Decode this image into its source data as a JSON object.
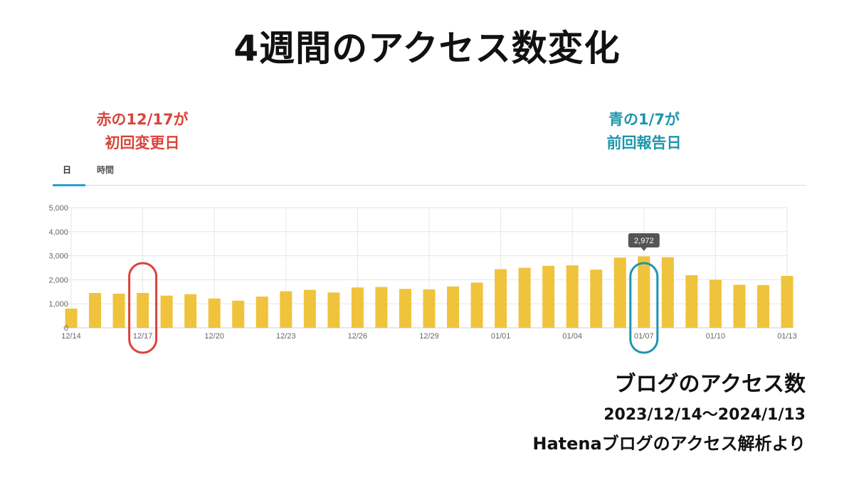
{
  "title": "4週間のアクセス数変化",
  "annotations": {
    "red": {
      "line1": "赤の12/17が",
      "line2": "初回変更日",
      "color": "#d9443a"
    },
    "teal": {
      "line1": "青の1/7が",
      "line2": "前回報告日",
      "color": "#1d96ad"
    }
  },
  "tabs": {
    "day": "日",
    "hour": "時間"
  },
  "footer": {
    "line1": "ブログのアクセス数",
    "line2": "2023/12/14〜2024/1/13",
    "line3": "Hatenaブログのアクセス解析より"
  },
  "chart_data": {
    "type": "bar",
    "categories": [
      "12/14",
      "12/15",
      "12/16",
      "12/17",
      "12/18",
      "12/19",
      "12/20",
      "12/21",
      "12/22",
      "12/23",
      "12/24",
      "12/25",
      "12/26",
      "12/27",
      "12/28",
      "12/29",
      "12/30",
      "12/31",
      "01/01",
      "01/02",
      "01/03",
      "01/04",
      "01/05",
      "01/06",
      "01/07",
      "01/08",
      "01/09",
      "01/10",
      "01/11",
      "01/12",
      "01/13"
    ],
    "values": [
      800,
      1450,
      1420,
      1450,
      1340,
      1400,
      1220,
      1130,
      1300,
      1520,
      1580,
      1470,
      1680,
      1700,
      1620,
      1600,
      1720,
      1880,
      2440,
      2500,
      2580,
      2600,
      2420,
      2920,
      2972,
      2940,
      2190,
      2000,
      1790,
      1780,
      2160
    ],
    "tick_labels": [
      "12/14",
      "12/17",
      "12/20",
      "12/23",
      "12/26",
      "12/29",
      "01/01",
      "01/04",
      "01/07",
      "01/10",
      "01/13"
    ],
    "y_ticks": [
      "0",
      "1,000",
      "2,000",
      "3,000",
      "4,000",
      "5,000"
    ],
    "ylim": [
      0,
      5000
    ],
    "grid": true,
    "tooltip": {
      "category": "01/07",
      "label": "2,972"
    },
    "highlights": [
      {
        "category": "12/17",
        "color": "#d9443a"
      },
      {
        "category": "01/07",
        "color": "#1d96ad"
      }
    ],
    "bar_color": "#f0c33c"
  }
}
